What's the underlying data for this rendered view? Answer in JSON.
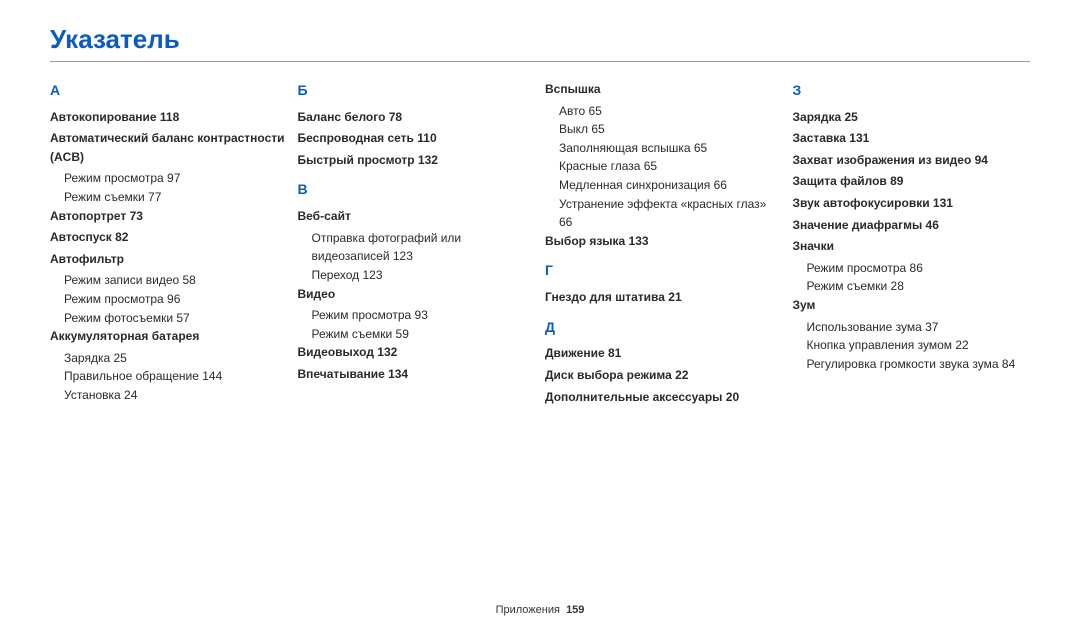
{
  "title": "Указатель",
  "footer": {
    "section": "Приложения",
    "page": "159"
  },
  "columns": [
    [
      {
        "type": "letter",
        "text": "А"
      },
      {
        "type": "bold",
        "text": "Автокопирование  118"
      },
      {
        "type": "bold",
        "text": "Автоматический баланс контрастности (ACB)"
      },
      {
        "type": "sub",
        "text": "Режим просмотра  97"
      },
      {
        "type": "sub",
        "text": "Режим съемки  77"
      },
      {
        "type": "bold",
        "text": "Автопортрет  73"
      },
      {
        "type": "bold",
        "text": "Автоспуск  82"
      },
      {
        "type": "bold",
        "text": "Автофильтр"
      },
      {
        "type": "sub",
        "text": "Режим записи видео  58"
      },
      {
        "type": "sub",
        "text": "Режим просмотра  96"
      },
      {
        "type": "sub",
        "text": "Режим фотосъемки  57"
      },
      {
        "type": "bold",
        "text": "Аккумуляторная батарея"
      },
      {
        "type": "sub",
        "text": "Зарядка  25"
      },
      {
        "type": "sub",
        "text": "Правильное обращение  144"
      },
      {
        "type": "sub",
        "text": "Установка  24"
      }
    ],
    [
      {
        "type": "letter",
        "text": "Б"
      },
      {
        "type": "bold",
        "text": "Баланс белого  78"
      },
      {
        "type": "bold",
        "text": "Беспроводная сеть  110"
      },
      {
        "type": "bold",
        "text": "Быстрый просмотр  132"
      },
      {
        "type": "letter",
        "text": "В"
      },
      {
        "type": "bold",
        "text": "Веб-сайт"
      },
      {
        "type": "sub",
        "text": "Отправка фотографий или видеозаписей  123"
      },
      {
        "type": "sub",
        "text": "Переход  123"
      },
      {
        "type": "bold",
        "text": "Видео"
      },
      {
        "type": "sub",
        "text": "Режим просмотра  93"
      },
      {
        "type": "sub",
        "text": "Режим съемки  59"
      },
      {
        "type": "bold",
        "text": "Видеовыход  132"
      },
      {
        "type": "bold",
        "text": "Впечатывание  134"
      }
    ],
    [
      {
        "type": "bold",
        "text": "Вспышка"
      },
      {
        "type": "sub",
        "text": "Авто  65"
      },
      {
        "type": "sub",
        "text": "Выкл  65"
      },
      {
        "type": "sub",
        "text": "Заполняющая вспышка  65"
      },
      {
        "type": "sub",
        "text": "Красные глаза  65"
      },
      {
        "type": "sub",
        "text": "Медленная синхронизация  66"
      },
      {
        "type": "sub",
        "text": "Устранение эффекта «красных глаз»  66"
      },
      {
        "type": "bold",
        "text": "Выбор языка  133"
      },
      {
        "type": "letter",
        "text": "Г"
      },
      {
        "type": "bold",
        "text": "Гнездо для штатива  21"
      },
      {
        "type": "letter",
        "text": "Д"
      },
      {
        "type": "bold",
        "text": "Движение  81"
      },
      {
        "type": "bold",
        "text": "Диск выбора режима  22"
      },
      {
        "type": "bold",
        "text": "Дополнительные аксессуары  20"
      }
    ],
    [
      {
        "type": "letter",
        "text": "З"
      },
      {
        "type": "bold",
        "text": "Зарядка  25"
      },
      {
        "type": "bold",
        "text": "Заставка  131"
      },
      {
        "type": "bold",
        "text": "Захват изображения из видео  94"
      },
      {
        "type": "bold",
        "text": "Защита файлов  89"
      },
      {
        "type": "bold",
        "text": "Звук автофокусировки  131"
      },
      {
        "type": "bold",
        "text": "Значение диафрагмы  46"
      },
      {
        "type": "bold",
        "text": "Значки"
      },
      {
        "type": "sub",
        "text": "Режим просмотра  86"
      },
      {
        "type": "sub",
        "text": "Режим съемки  28"
      },
      {
        "type": "bold",
        "text": "Зум"
      },
      {
        "type": "sub",
        "text": "Использование зума  37"
      },
      {
        "type": "sub",
        "text": "Кнопка управления зумом  22"
      },
      {
        "type": "sub",
        "text": "Регулировка громкости звука зума  84"
      }
    ]
  ]
}
